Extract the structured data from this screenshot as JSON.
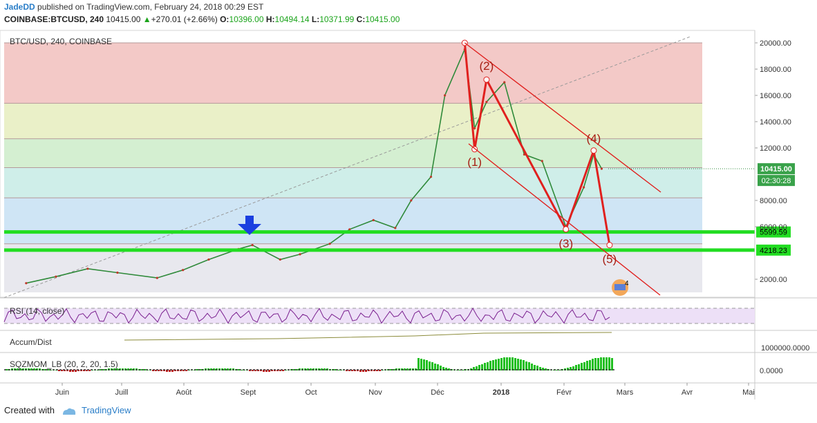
{
  "header": {
    "author": "JadeDD",
    "published_text": "published on TradingView.com, February 24, 2018 00:29 EST",
    "symbol": "COINBASE:BTCUSD, 240",
    "last": "10415.00",
    "change": "+270.01 (+2.66%)",
    "o_label": "O:",
    "o_value": "10396.00",
    "h_label": "H:",
    "h_value": "10494.14",
    "l_label": "L:",
    "l_value": "10371.99",
    "c_label": "C:",
    "c_value": "10415.00"
  },
  "chart_data": {
    "type": "line",
    "pane_title": "BTC/USD, 240, COINBASE",
    "x_tick_labels": [
      "Juin",
      "Juill",
      "Août",
      "Sept",
      "Oct",
      "Nov",
      "Déc",
      "2018",
      "Févr",
      "Mars",
      "Avr",
      "Mai"
    ],
    "y_tick_labels": [
      "20000.00",
      "18000.00",
      "16000.00",
      "14000.00",
      "12000.00",
      "8000.00",
      "6000.00",
      "2000.00"
    ],
    "ylim": [
      1000,
      21000
    ],
    "price_series": {
      "x": [
        "2017-05-10",
        "2017-05-25",
        "2017-06-10",
        "2017-06-25",
        "2017-07-15",
        "2017-07-28",
        "2017-08-10",
        "2017-08-25",
        "2017-09-01",
        "2017-09-15",
        "2017-09-25",
        "2017-10-10",
        "2017-10-20",
        "2017-11-01",
        "2017-11-12",
        "2017-11-20",
        "2017-11-30",
        "2017-12-07",
        "2017-12-17",
        "2017-12-22",
        "2017-12-28",
        "2018-01-06",
        "2018-01-16",
        "2018-01-25",
        "2018-02-06",
        "2018-02-15",
        "2018-02-20",
        "2018-02-24"
      ],
      "y": [
        1700,
        2200,
        2800,
        2500,
        2100,
        2700,
        3500,
        4300,
        4600,
        3500,
        3900,
        4700,
        5800,
        6500,
        5900,
        8000,
        9800,
        16000,
        19500,
        13500,
        15500,
        17000,
        11500,
        11000,
        6000,
        9000,
        11500,
        10415
      ]
    },
    "fib_levels": [
      {
        "label": "5599.59",
        "value": 5599.59,
        "color": "#22dd22"
      },
      {
        "label": "4218.23",
        "value": 4218.23,
        "color": "#22dd22"
      }
    ],
    "last_price": {
      "label": "10415.00",
      "countdown": "02:30:28"
    },
    "wave_labels": [
      {
        "label": "(1)",
        "date": "2017-12-22",
        "price": 11900
      },
      {
        "label": "(2)",
        "date": "2017-12-28",
        "price": 17200
      },
      {
        "label": "(3)",
        "date": "2018-02-06",
        "price": 5800
      },
      {
        "label": "(4)",
        "date": "2018-02-20",
        "price": 11800
      },
      {
        "label": "(5)",
        "date": "2018-02-28",
        "price": 4600
      }
    ],
    "rsi": {
      "title": "RSI (14, close)"
    },
    "accum": {
      "title": "Accum/Dist",
      "axis_label": "1000000.0000"
    },
    "sqz": {
      "title": "SQZMOM_LB (20, 2, 20, 1.5)",
      "axis_label": "0.0000"
    },
    "badge": "4"
  },
  "footer": {
    "created_with": "Created with",
    "brand": "TradingView"
  }
}
